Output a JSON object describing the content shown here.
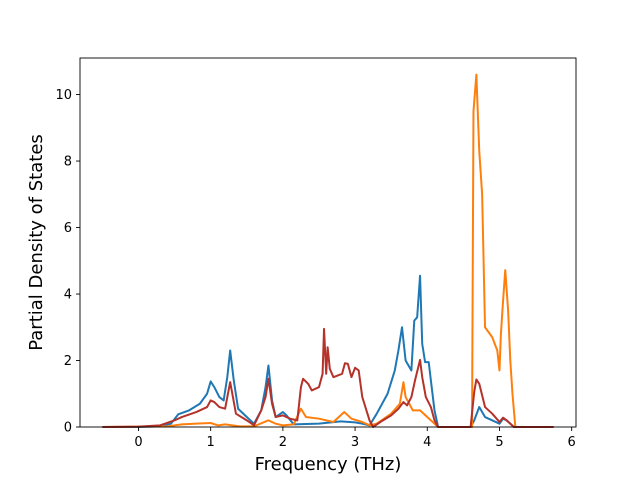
{
  "chart_data": {
    "type": "line",
    "title": "",
    "xlabel": "Frequency (THz)",
    "ylabel": "Partial Density of States",
    "xlim": [
      -0.81,
      6.06
    ],
    "ylim": [
      0,
      11.1
    ],
    "xticks": [
      0,
      1,
      2,
      3,
      4,
      5,
      6
    ],
    "yticks": [
      0,
      2,
      4,
      6,
      8,
      10
    ],
    "grid": false,
    "legend": "none",
    "series": [
      {
        "color": "#1f77b4",
        "points": [
          [
            -0.5,
            0
          ],
          [
            0,
            0
          ],
          [
            0.3,
            0.02
          ],
          [
            0.45,
            0.1
          ],
          [
            0.55,
            0.38
          ],
          [
            0.7,
            0.5
          ],
          [
            0.85,
            0.7
          ],
          [
            0.95,
            1.0
          ],
          [
            1.0,
            1.37
          ],
          [
            1.05,
            1.2
          ],
          [
            1.12,
            0.9
          ],
          [
            1.18,
            0.8
          ],
          [
            1.23,
            1.5
          ],
          [
            1.27,
            2.3
          ],
          [
            1.32,
            1.4
          ],
          [
            1.38,
            0.55
          ],
          [
            1.5,
            0.3
          ],
          [
            1.6,
            0.1
          ],
          [
            1.7,
            0.5
          ],
          [
            1.76,
            1.2
          ],
          [
            1.8,
            1.85
          ],
          [
            1.85,
            0.8
          ],
          [
            1.9,
            0.3
          ],
          [
            2.0,
            0.45
          ],
          [
            2.05,
            0.35
          ],
          [
            2.15,
            0.08
          ],
          [
            2.5,
            0.1
          ],
          [
            2.8,
            0.17
          ],
          [
            3.0,
            0.14
          ],
          [
            3.1,
            0.1
          ],
          [
            3.2,
            0.05
          ],
          [
            3.3,
            0.4
          ],
          [
            3.45,
            1.0
          ],
          [
            3.55,
            1.7
          ],
          [
            3.6,
            2.3
          ],
          [
            3.65,
            3.0
          ],
          [
            3.7,
            2.0
          ],
          [
            3.78,
            1.7
          ],
          [
            3.82,
            3.2
          ],
          [
            3.86,
            3.3
          ],
          [
            3.9,
            4.55
          ],
          [
            3.93,
            2.5
          ],
          [
            3.97,
            1.95
          ],
          [
            4.02,
            1.95
          ],
          [
            4.05,
            1.4
          ],
          [
            4.1,
            0.5
          ],
          [
            4.15,
            0
          ],
          [
            4.6,
            0
          ],
          [
            4.65,
            0.2
          ],
          [
            4.72,
            0.6
          ],
          [
            4.8,
            0.3
          ],
          [
            5.0,
            0.1
          ],
          [
            5.05,
            0.25
          ],
          [
            5.1,
            0.2
          ],
          [
            5.2,
            0
          ],
          [
            5.75,
            0
          ]
        ]
      },
      {
        "color": "#ff7f0e",
        "points": [
          [
            -0.5,
            0
          ],
          [
            0.4,
            0.02
          ],
          [
            0.6,
            0.08
          ],
          [
            0.8,
            0.1
          ],
          [
            1.0,
            0.12
          ],
          [
            1.1,
            0.05
          ],
          [
            1.2,
            0.08
          ],
          [
            1.4,
            0.02
          ],
          [
            1.6,
            0.02
          ],
          [
            1.8,
            0.2
          ],
          [
            1.9,
            0.1
          ],
          [
            2.0,
            0.05
          ],
          [
            2.15,
            0.08
          ],
          [
            2.25,
            0.55
          ],
          [
            2.32,
            0.3
          ],
          [
            2.5,
            0.25
          ],
          [
            2.7,
            0.15
          ],
          [
            2.85,
            0.45
          ],
          [
            2.95,
            0.25
          ],
          [
            3.1,
            0.15
          ],
          [
            3.2,
            0.05
          ],
          [
            3.3,
            0.1
          ],
          [
            3.5,
            0.4
          ],
          [
            3.62,
            0.7
          ],
          [
            3.67,
            1.35
          ],
          [
            3.7,
            0.9
          ],
          [
            3.8,
            0.5
          ],
          [
            3.9,
            0.5
          ],
          [
            4.0,
            0.3
          ],
          [
            4.1,
            0.1
          ],
          [
            4.15,
            0
          ],
          [
            4.62,
            0
          ],
          [
            4.64,
            9.5
          ],
          [
            4.68,
            10.6
          ],
          [
            4.72,
            8.3
          ],
          [
            4.76,
            7.0
          ],
          [
            4.8,
            3.0
          ],
          [
            4.9,
            2.7
          ],
          [
            4.97,
            2.3
          ],
          [
            5.0,
            1.7
          ],
          [
            5.02,
            2.8
          ],
          [
            5.05,
            3.8
          ],
          [
            5.08,
            4.72
          ],
          [
            5.12,
            3.5
          ],
          [
            5.15,
            2.0
          ],
          [
            5.18,
            1.0
          ],
          [
            5.22,
            0
          ],
          [
            5.75,
            0
          ]
        ]
      },
      {
        "color": "#b5322a",
        "points": [
          [
            -0.5,
            0
          ],
          [
            0,
            0.01
          ],
          [
            0.3,
            0.05
          ],
          [
            0.5,
            0.2
          ],
          [
            0.6,
            0.3
          ],
          [
            0.8,
            0.45
          ],
          [
            0.95,
            0.6
          ],
          [
            1.0,
            0.8
          ],
          [
            1.05,
            0.75
          ],
          [
            1.12,
            0.6
          ],
          [
            1.2,
            0.55
          ],
          [
            1.27,
            1.35
          ],
          [
            1.3,
            1.0
          ],
          [
            1.35,
            0.4
          ],
          [
            1.5,
            0.2
          ],
          [
            1.6,
            0.05
          ],
          [
            1.7,
            0.5
          ],
          [
            1.76,
            0.9
          ],
          [
            1.8,
            1.45
          ],
          [
            1.85,
            0.7
          ],
          [
            1.9,
            0.3
          ],
          [
            2.0,
            0.35
          ],
          [
            2.1,
            0.25
          ],
          [
            2.2,
            0.2
          ],
          [
            2.25,
            1.2
          ],
          [
            2.28,
            1.45
          ],
          [
            2.35,
            1.3
          ],
          [
            2.4,
            1.1
          ],
          [
            2.5,
            1.2
          ],
          [
            2.55,
            1.6
          ],
          [
            2.57,
            2.95
          ],
          [
            2.6,
            1.6
          ],
          [
            2.62,
            2.4
          ],
          [
            2.65,
            1.75
          ],
          [
            2.7,
            1.5
          ],
          [
            2.82,
            1.6
          ],
          [
            2.86,
            1.92
          ],
          [
            2.9,
            1.9
          ],
          [
            2.95,
            1.5
          ],
          [
            3.0,
            1.78
          ],
          [
            3.05,
            1.7
          ],
          [
            3.1,
            0.9
          ],
          [
            3.2,
            0.2
          ],
          [
            3.25,
            0
          ],
          [
            3.35,
            0.15
          ],
          [
            3.5,
            0.35
          ],
          [
            3.6,
            0.55
          ],
          [
            3.67,
            0.75
          ],
          [
            3.72,
            0.65
          ],
          [
            3.78,
            0.9
          ],
          [
            3.83,
            1.4
          ],
          [
            3.9,
            2.02
          ],
          [
            3.93,
            1.5
          ],
          [
            3.98,
            0.9
          ],
          [
            4.05,
            0.6
          ],
          [
            4.1,
            0.2
          ],
          [
            4.15,
            0
          ],
          [
            4.6,
            0
          ],
          [
            4.65,
            1.05
          ],
          [
            4.68,
            1.43
          ],
          [
            4.72,
            1.3
          ],
          [
            4.8,
            0.6
          ],
          [
            4.9,
            0.4
          ],
          [
            5.0,
            0.15
          ],
          [
            5.05,
            0.28
          ],
          [
            5.1,
            0.2
          ],
          [
            5.2,
            0
          ],
          [
            5.75,
            0
          ]
        ]
      }
    ]
  }
}
